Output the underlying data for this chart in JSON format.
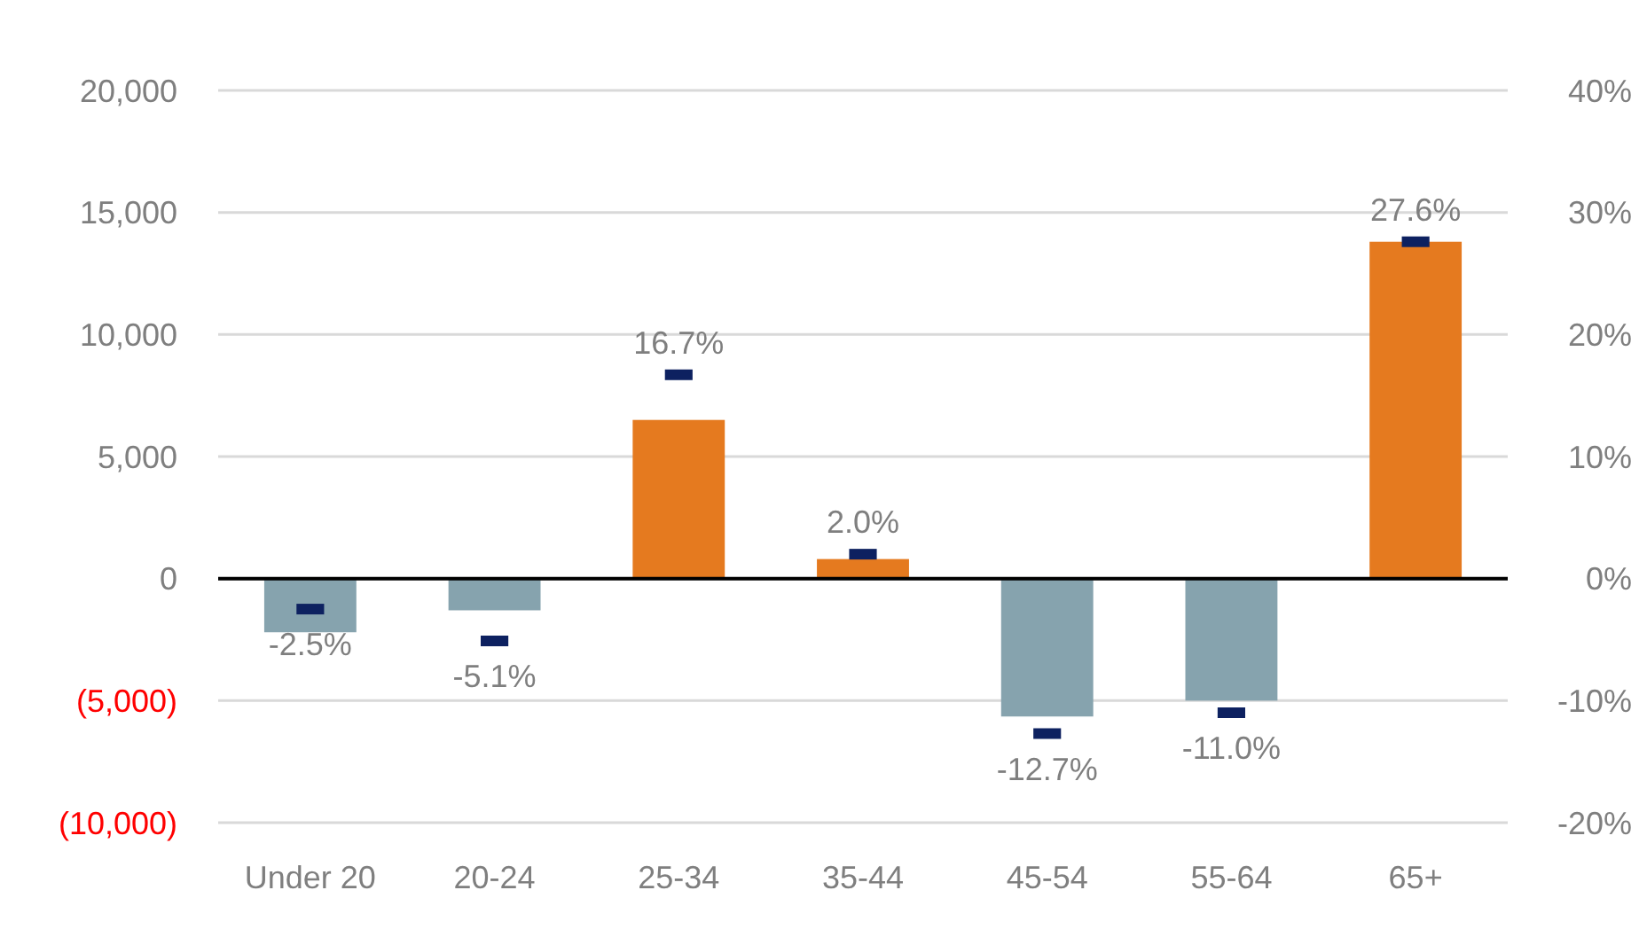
{
  "chart_data": {
    "type": "bar",
    "categories": [
      "Under 20",
      "20-24",
      "25-34",
      "35-44",
      "45-54",
      "55-64",
      "65+"
    ],
    "series": [
      {
        "values": [
          -2200,
          -1300,
          6500,
          800,
          -5650,
          -5000,
          13800
        ],
        "colors": [
          "#86a3ae",
          "#86a3ae",
          "#e57a1f",
          "#e57a1f",
          "#86a3ae",
          "#86a3ae",
          "#e57a1f"
        ]
      },
      {
        "type": "scatter",
        "axis": "y2",
        "color": "#0d2160",
        "values": [
          -2.5,
          -5.1,
          16.7,
          2.0,
          -12.7,
          -11.0,
          27.6
        ],
        "value_labels": [
          "-2.5%",
          "-5.1%",
          "16.7%",
          "2.0%",
          "-12.7%",
          "-11.0%",
          "27.6%"
        ]
      }
    ],
    "ylim": [
      -10000,
      20000
    ],
    "yticks": [
      {
        "value": -10000,
        "label": "(10,000)"
      },
      {
        "value": -5000,
        "label": "(5,000)"
      },
      {
        "value": 0,
        "label": "0"
      },
      {
        "value": 5000,
        "label": "5,000"
      },
      {
        "value": 10000,
        "label": "10,000"
      },
      {
        "value": 15000,
        "label": "15,000"
      },
      {
        "value": 20000,
        "label": "20,000"
      }
    ],
    "y2lim": [
      -20,
      40
    ],
    "y2ticks": [
      {
        "value": -20,
        "label": "-20%"
      },
      {
        "value": -10,
        "label": "-10%"
      },
      {
        "value": 0,
        "label": "0%"
      },
      {
        "value": 10,
        "label": "10%"
      },
      {
        "value": 20,
        "label": "20%"
      },
      {
        "value": 30,
        "label": "30%"
      },
      {
        "value": 40,
        "label": "40%"
      }
    ],
    "grid": "y"
  }
}
